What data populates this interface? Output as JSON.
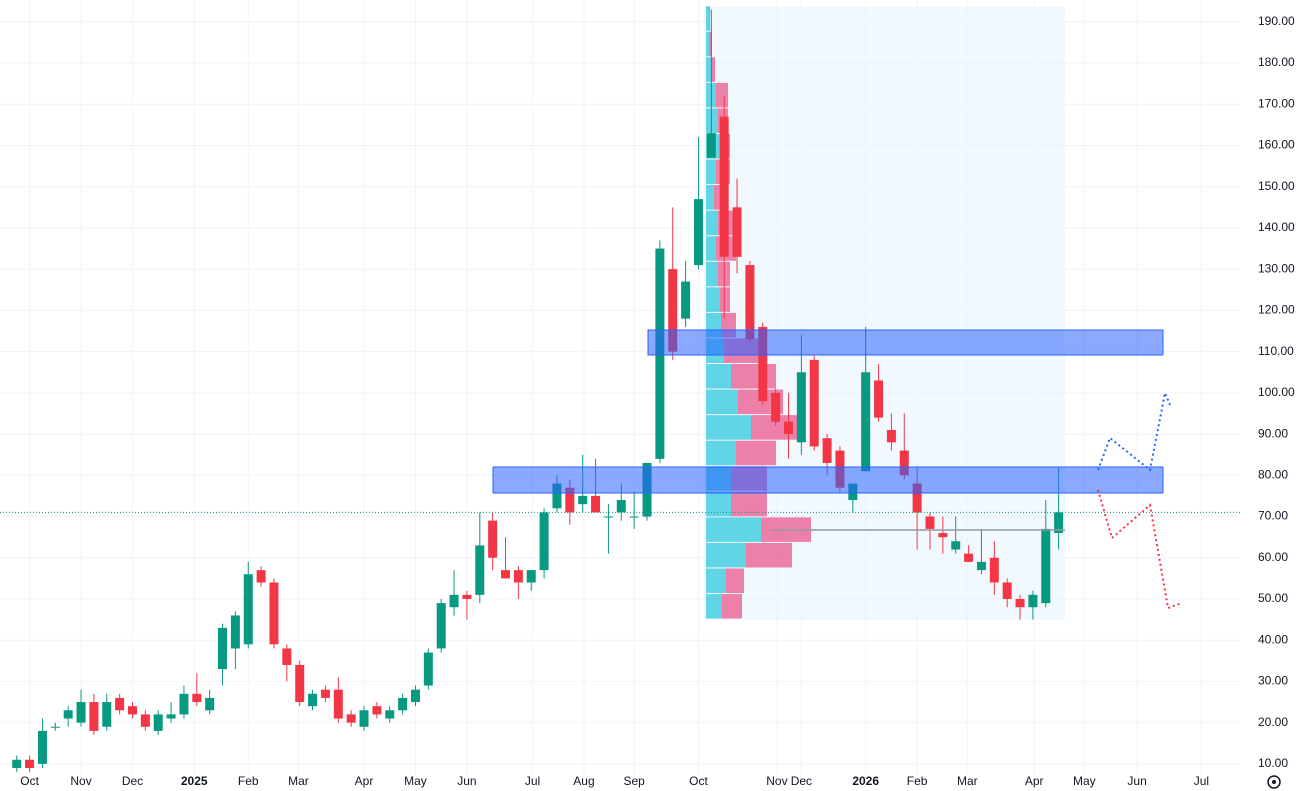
{
  "chart_data": {
    "type": "candlestick",
    "up_color": "#089981",
    "down_color": "#f23645",
    "grid": true,
    "xlim": [
      -1.3,
      95.1
    ],
    "ylim": [
      7.3,
      195.3
    ],
    "yticks": [
      {
        "value": 10,
        "label": "10.00"
      },
      {
        "value": 20,
        "label": "20.00"
      },
      {
        "value": 30,
        "label": "30.00"
      },
      {
        "value": 40,
        "label": "40.00"
      },
      {
        "value": 50,
        "label": "50.00"
      },
      {
        "value": 60,
        "label": "60.00"
      },
      {
        "value": 70,
        "label": "70.00"
      },
      {
        "value": 80,
        "label": "80.00"
      },
      {
        "value": 90,
        "label": "90.00"
      },
      {
        "value": 100,
        "label": "100.00"
      },
      {
        "value": 110,
        "label": "110.00"
      },
      {
        "value": 120,
        "label": "120.00"
      },
      {
        "value": 130,
        "label": "130.00"
      },
      {
        "value": 140,
        "label": "140.00"
      },
      {
        "value": 150,
        "label": "150.00"
      },
      {
        "value": 160,
        "label": "160.00"
      },
      {
        "value": 170,
        "label": "170.00"
      },
      {
        "value": 180,
        "label": "180.00"
      },
      {
        "value": 190,
        "label": "190.00"
      }
    ],
    "xticks": [
      {
        "value": 1,
        "label": "Oct"
      },
      {
        "value": 5,
        "label": "Nov"
      },
      {
        "value": 9,
        "label": "Dec"
      },
      {
        "value": 13.8,
        "label": "2025"
      },
      {
        "value": 18,
        "label": "Feb"
      },
      {
        "value": 21.9,
        "label": "Mar"
      },
      {
        "value": 27,
        "label": "Apr"
      },
      {
        "value": 31,
        "label": "May"
      },
      {
        "value": 35,
        "label": "Jun"
      },
      {
        "value": 40.1,
        "label": "Jul"
      },
      {
        "value": 44.1,
        "label": "Aug"
      },
      {
        "value": 48,
        "label": "Sep"
      },
      {
        "value": 53,
        "label": "Oct"
      },
      {
        "value": 59.1,
        "label": "Nov"
      },
      {
        "value": 61,
        "label": "Dec"
      },
      {
        "value": 66,
        "label": "2026"
      },
      {
        "value": 70,
        "label": "Feb"
      },
      {
        "value": 73.9,
        "label": "Mar"
      },
      {
        "value": 79.1,
        "label": "Apr"
      },
      {
        "value": 83,
        "label": "May"
      },
      {
        "value": 87.1,
        "label": "Jun"
      },
      {
        "value": 92.1,
        "label": "Jul"
      }
    ],
    "open": [
      9,
      11,
      10,
      19,
      21,
      20,
      25,
      19,
      26,
      24,
      22,
      18,
      21,
      22,
      27,
      23,
      33,
      38,
      39,
      57,
      54,
      38,
      34,
      24,
      28,
      28,
      22,
      19,
      24,
      21,
      23,
      25,
      29,
      38,
      48,
      51,
      51,
      69,
      57,
      57,
      54,
      57,
      72,
      77,
      73,
      75,
      70,
      71,
      70,
      70,
      84,
      130,
      118,
      131,
      157,
      167,
      145,
      131,
      116,
      100,
      93,
      88,
      108,
      89,
      86,
      74,
      81,
      103,
      91,
      86,
      78,
      70,
      66,
      62,
      61,
      57,
      60,
      54,
      50,
      48,
      49,
      66
    ],
    "high": [
      12,
      12,
      21,
      20,
      24,
      28,
      27,
      27,
      27,
      25,
      23,
      23,
      25,
      29,
      32,
      28,
      44,
      47,
      59,
      58,
      55,
      39,
      35,
      28,
      29,
      31,
      23,
      24,
      25,
      24,
      27,
      29,
      38,
      50,
      57,
      52,
      71,
      71,
      65,
      58,
      57,
      72,
      80,
      79,
      85,
      84,
      73,
      78,
      76,
      83,
      137,
      145,
      132,
      162,
      193,
      172,
      152,
      132,
      117,
      101,
      100,
      114,
      109,
      90,
      87,
      78,
      116,
      107,
      95,
      95,
      82,
      71,
      70,
      70,
      63,
      67,
      64,
      55,
      51,
      52,
      74,
      82
    ],
    "low": [
      8,
      8,
      9,
      18,
      19,
      19,
      17,
      18,
      22,
      21,
      18,
      17,
      20,
      21,
      24,
      22,
      29,
      33,
      38,
      53,
      38,
      30,
      24,
      23,
      25,
      20,
      19,
      18,
      21,
      20,
      22,
      24,
      28,
      37,
      46,
      45,
      49,
      57,
      55,
      50,
      52,
      55,
      71,
      68,
      71,
      72,
      61,
      69,
      67,
      69,
      83,
      108,
      116,
      130,
      157,
      118,
      129,
      112,
      97,
      92,
      84,
      85,
      86,
      80,
      76,
      71,
      81,
      93,
      86,
      79,
      62,
      62,
      61,
      61,
      59,
      56,
      51,
      48,
      45,
      45,
      48,
      62
    ],
    "close": [
      11,
      9,
      18,
      19,
      23,
      25,
      18,
      25,
      23,
      22,
      19,
      22,
      22,
      27,
      25,
      26,
      43,
      46,
      56,
      54,
      39,
      34,
      25,
      27,
      26,
      21,
      20,
      23,
      22,
      23,
      26,
      28,
      37,
      49,
      51,
      50,
      63,
      60,
      55,
      54,
      57,
      71,
      78,
      71,
      75,
      71,
      70,
      74,
      70,
      83,
      135,
      110,
      127,
      147,
      163,
      133,
      133,
      113,
      98,
      93,
      90,
      105,
      87,
      83,
      77,
      78,
      105,
      94,
      88,
      80,
      71,
      67,
      65,
      64,
      59,
      59,
      54,
      50,
      48,
      51,
      67,
      71
    ],
    "volume_profile": {
      "bins": [
        45,
        51.2,
        57.4,
        63.6,
        69.8,
        76,
        82.2,
        88.4,
        94.6,
        100.8,
        107,
        113.2,
        119.4,
        125.6,
        131.8,
        138,
        144.2,
        150.4,
        156.6,
        162.8,
        169,
        175.2,
        181.4,
        187.6,
        193.8
      ],
      "up": [
        16,
        20,
        40,
        55,
        25,
        25,
        30,
        45,
        32,
        25,
        18,
        15,
        14,
        12,
        10,
        12,
        8,
        10,
        14,
        12,
        10,
        5,
        3,
        3
      ],
      "down": [
        20,
        18,
        46,
        50,
        36,
        36,
        40,
        50,
        45,
        45,
        40,
        15,
        10,
        12,
        20,
        18,
        12,
        14,
        10,
        10,
        12,
        4,
        3,
        1
      ]
    }
  }
}
